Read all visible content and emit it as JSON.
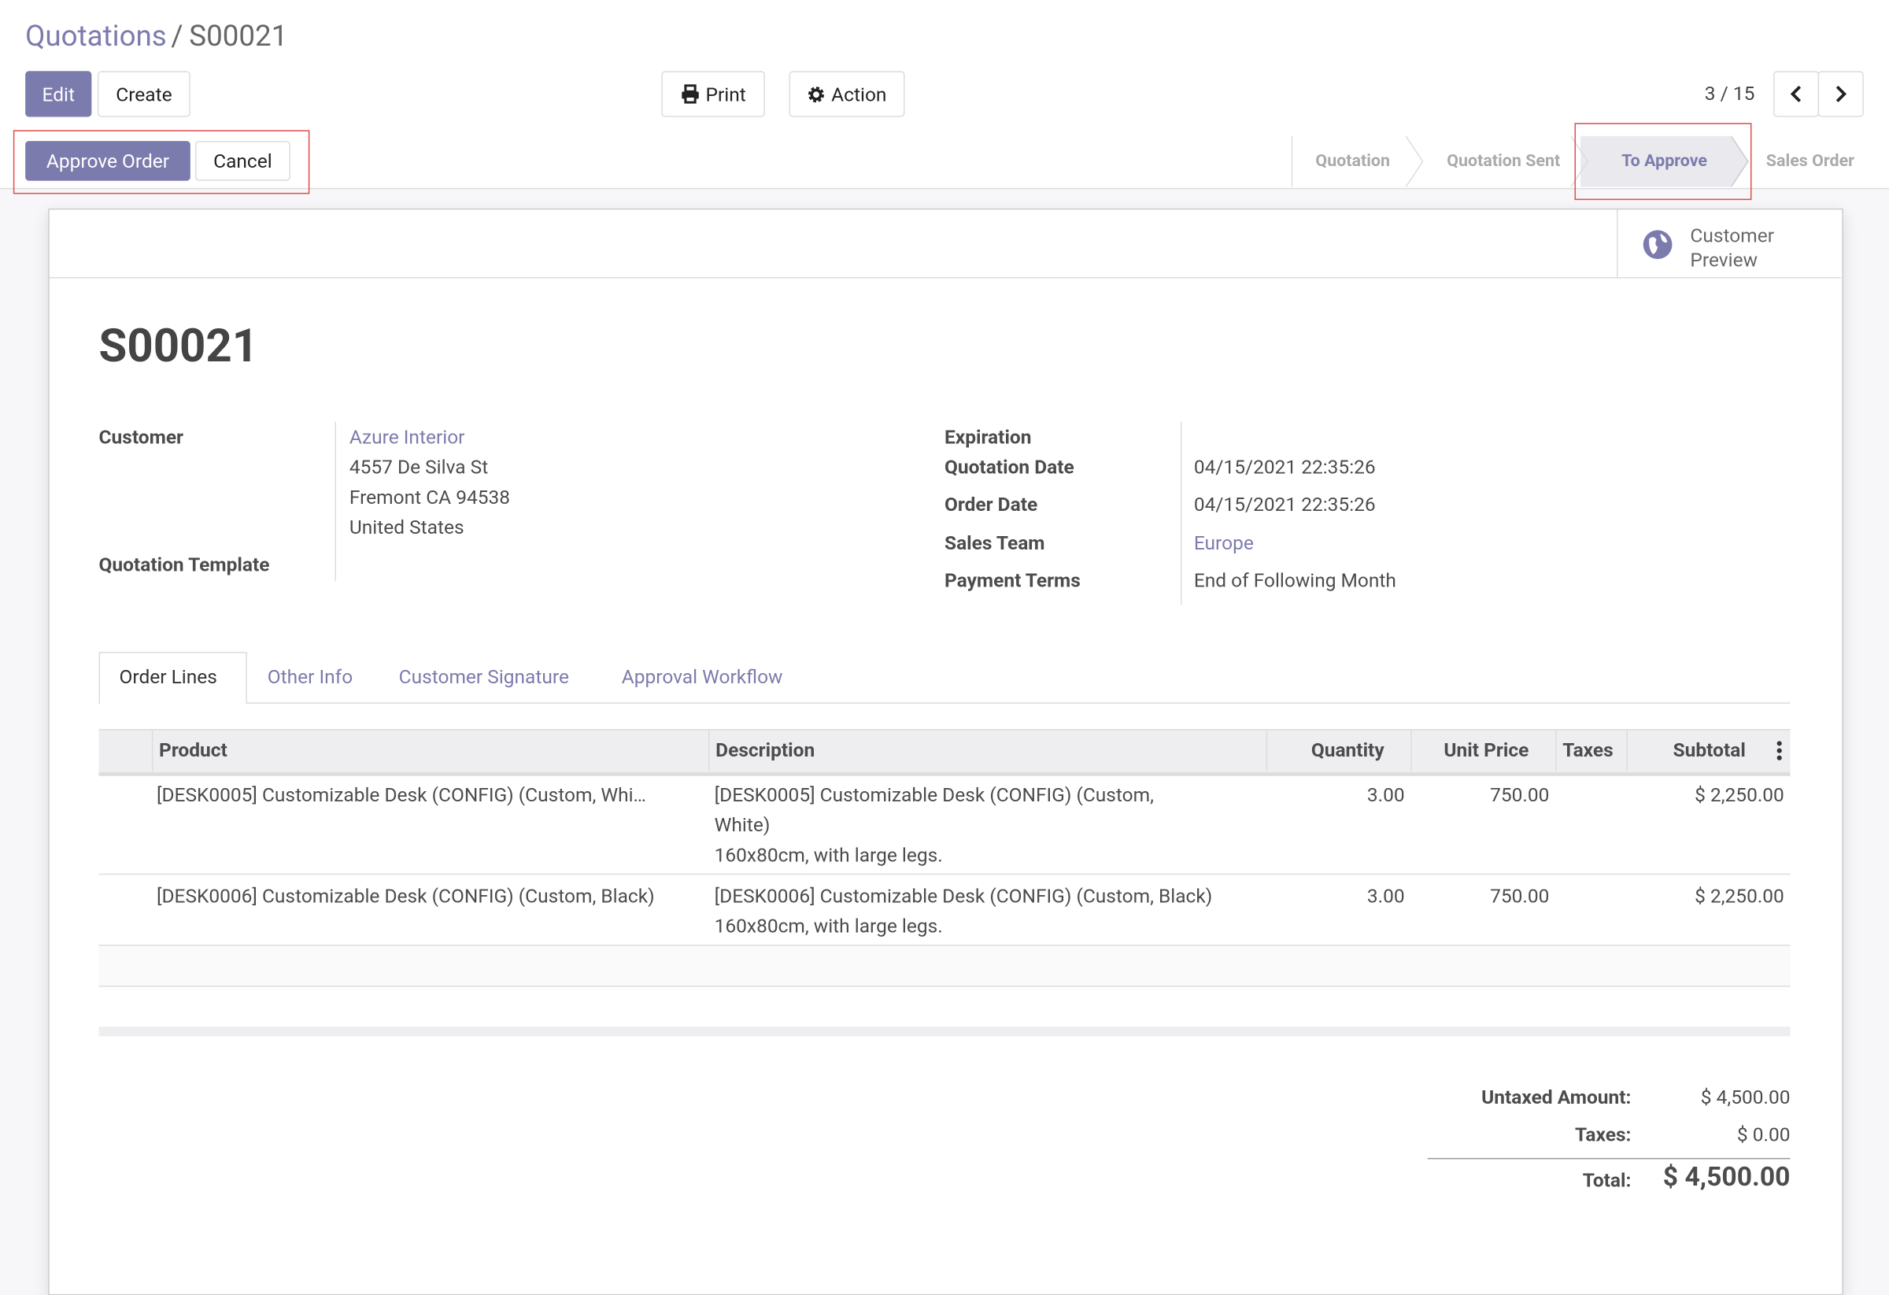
{
  "breadcrumb": [
    "Quotations",
    "S00021"
  ],
  "buttons": {
    "edit": "Edit",
    "create": "Create",
    "print": "Print",
    "action": "Action",
    "approve": "Approve Order",
    "cancel": "Cancel"
  },
  "pager": "3 / 15",
  "stages": [
    "Quotation",
    "Quotation Sent",
    "To Approve",
    "Sales Order"
  ],
  "customer_preview": [
    "Customer",
    "Preview"
  ],
  "record": {
    "name": "S00021",
    "left": {
      "customer_label": "Customer",
      "customer": "Azure Interior",
      "address": [
        "4557 De Silva St",
        "Fremont CA 94538",
        "United States"
      ],
      "template_label": "Quotation Template"
    },
    "right": [
      {
        "label": "Expiration",
        "value": null
      },
      {
        "label": "Quotation Date",
        "value": "04/15/2021 22:35:26"
      },
      {
        "label": "Order Date",
        "value": "04/15/2021 22:35:26"
      },
      {
        "label": "Sales Team",
        "value": "Europe"
      },
      {
        "label": "Payment Terms",
        "value": "End of Following Month"
      }
    ]
  },
  "tabs": [
    "Order Lines",
    "Other Info",
    "Customer Signature",
    "Approval Workflow"
  ],
  "table": {
    "headers": [
      "Product",
      "Description",
      "Quantity",
      "Unit Price",
      "Taxes",
      "Subtotal"
    ],
    "rows": [
      [
        "[DESK0005] Customizable Desk (CONFIG) (Custom, Whi…",
        [
          "[DESK0005] Customizable Desk (CONFIG) (Custom,",
          "White)",
          "160x80cm, with large legs."
        ],
        "3.00",
        "750.00",
        "",
        "$ 2,250.00"
      ],
      [
        "[DESK0006] Customizable Desk (CONFIG) (Custom, Black)",
        [
          "[DESK0006] Customizable Desk (CONFIG) (Custom, Black)",
          "160x80cm, with large legs."
        ],
        "3.00",
        "750.00",
        "",
        "$ 2,250.00"
      ]
    ]
  },
  "totals": [
    {
      "label": "Untaxed Amount:",
      "value": "$ 4,500.00"
    },
    {
      "label": "Taxes:",
      "value": "$ 0.00"
    },
    {
      "label": "Total:",
      "value": "$ 4,500.00"
    }
  ]
}
